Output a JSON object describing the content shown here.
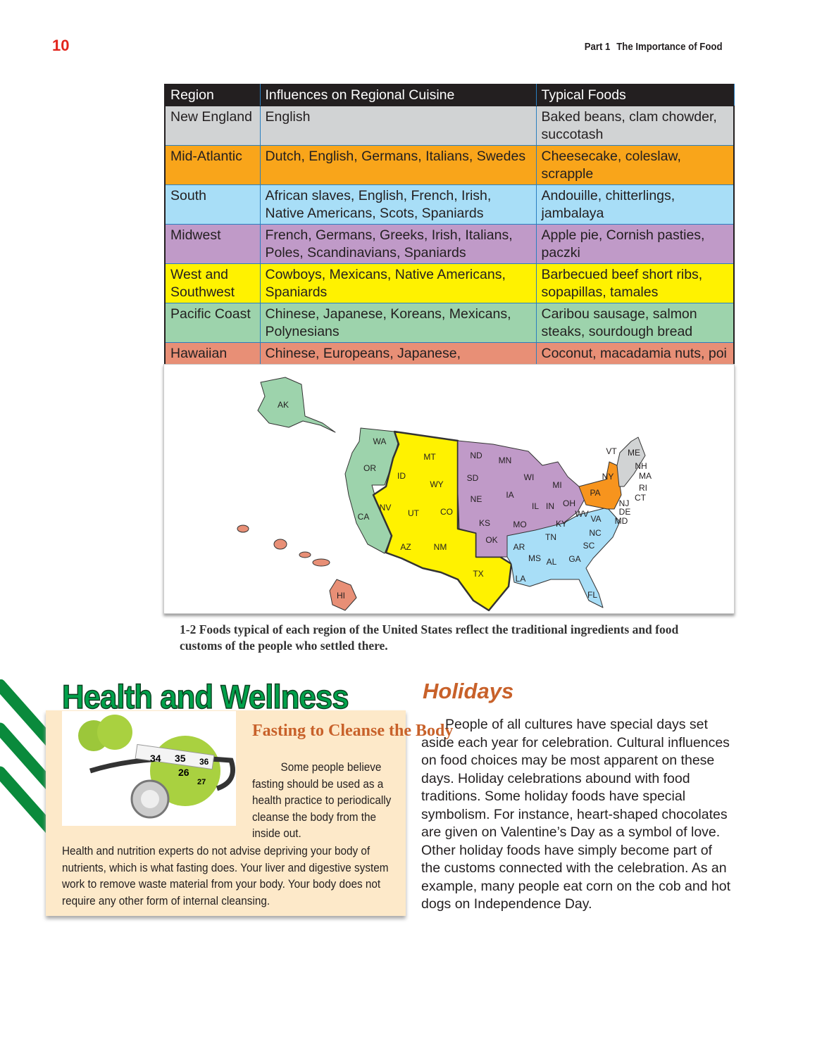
{
  "page_number": "10",
  "running_head": {
    "part": "Part 1",
    "title": "The Importance of Food"
  },
  "table": {
    "headers": [
      "Region",
      "Influences on Regional Cuisine",
      "Typical Foods"
    ],
    "rows": [
      {
        "region": "New England",
        "influences": "English",
        "foods": "Baked beans, clam chowder, succotash",
        "color": "#d1d3d4"
      },
      {
        "region": "Mid-Atlantic",
        "influences": "Dutch, English, Germans, Italians, Swedes",
        "foods": "Cheesecake, coleslaw, scrapple",
        "color": "#f9a51a"
      },
      {
        "region": "South",
        "influences": "African slaves, English, French, Irish, Native Americans, Scots, Spaniards",
        "foods": "Andouille, chitterlings, jambalaya",
        "color": "#a8def7"
      },
      {
        "region": "Midwest",
        "influences": "French, Germans, Greeks, Irish, Italians, Poles, Scandinavians, Spaniards",
        "foods": "Apple pie, Cornish pasties, paczki",
        "color": "#c09ac8"
      },
      {
        "region": "West and Southwest",
        "influences": "Cowboys, Mexicans, Native Americans, Spaniards",
        "foods": "Barbecued beef short ribs, sopapillas, tamales",
        "color": "#fff200"
      },
      {
        "region": "Pacific Coast",
        "influences": "Chinese, Japanese, Koreans, Mexicans, Polynesians",
        "foods": "Caribou sausage, salmon steaks, sourdough bread",
        "color": "#9dd3ac"
      },
      {
        "region": "Hawaiian Islands",
        "influences": "Chinese, Europeans, Japanese, Polynesians",
        "foods": "Coconut, macadamia nuts, poi",
        "color": "#e88f76"
      }
    ]
  },
  "map": {
    "state_labels": [
      "AK",
      "WA",
      "OR",
      "CA",
      "ID",
      "MT",
      "WY",
      "NV",
      "UT",
      "CO",
      "AZ",
      "NM",
      "TX",
      "ND",
      "SD",
      "NE",
      "KS",
      "OK",
      "MN",
      "IA",
      "MO",
      "WI",
      "IL",
      "IN",
      "MI",
      "OH",
      "KY",
      "TN",
      "AR",
      "MS",
      "AL",
      "LA",
      "GA",
      "FL",
      "SC",
      "NC",
      "VA",
      "WV",
      "MD",
      "DE",
      "NJ",
      "PA",
      "NY",
      "CT",
      "RI",
      "MA",
      "NH",
      "VT",
      "ME",
      "HI"
    ]
  },
  "caption": {
    "number": "1-2",
    "text": "Foods typical of each region of the United States reflect the traditional ingredients and food customs of the people who settled there."
  },
  "health": {
    "title": "Health and Wellness",
    "heading": "Fasting to Cleanse the Body",
    "side_text": "Some people believe fasting should be used as a health practice to periodically cleanse the body from the inside out.",
    "body": "Health and nutrition experts do not advise depriving your body of nutrients, which is what fasting does. Your liver and digestive system work to remove waste material from your body. Your body does not require any other form of internal cleansing.",
    "photo_numbers": [
      "34",
      "35",
      "36",
      "26",
      "27"
    ],
    "accent": "#00a14b"
  },
  "holidays": {
    "title": "Holidays",
    "body": "People of all cultures have special days set aside each year for celebration. Cultural influences on food choices may be most apparent on these days. Holiday celebrations abound with food traditions. Some holiday foods have special symbolism. For instance, heart-shaped chocolates are given on Valentine’s Day as a symbol of love. Other holiday foods have simply become part of the customs connected with the celebration. As an example, many people eat corn on the cob and hot dogs on Independence Day."
  }
}
